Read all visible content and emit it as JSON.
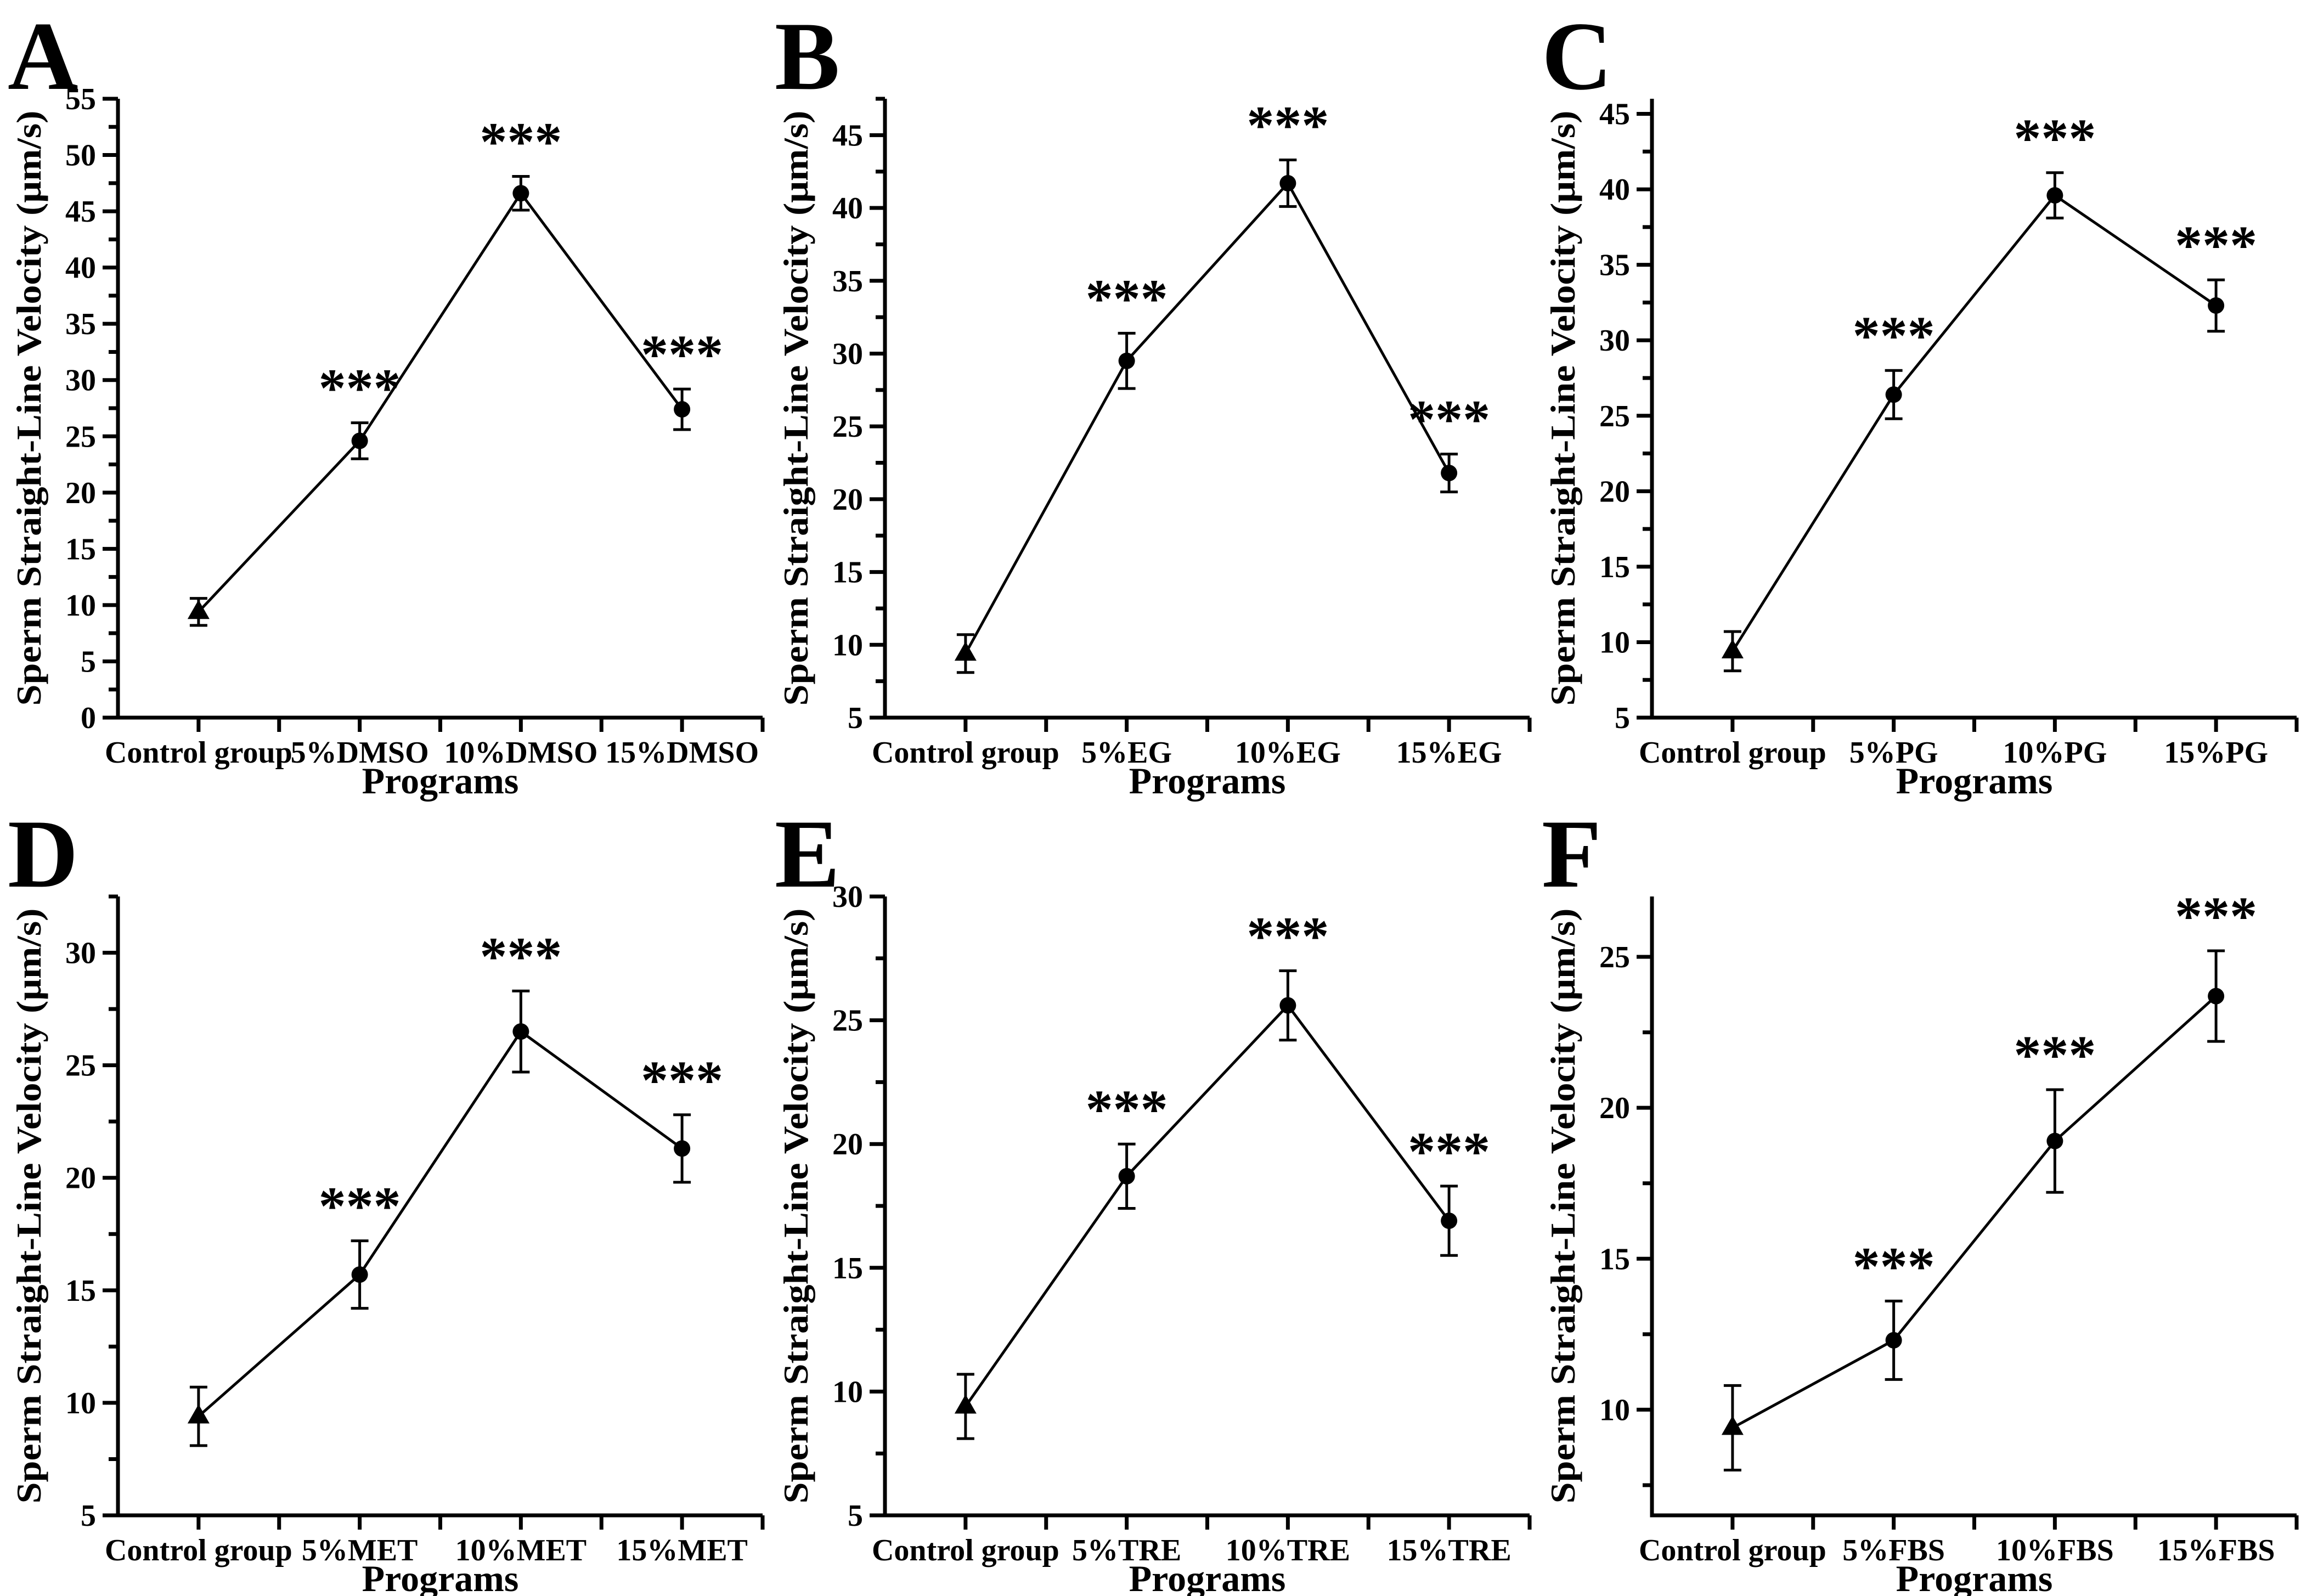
{
  "figure": {
    "background_color": "#ffffff",
    "foreground_color": "#000000",
    "shared_ylabel": "Sperm Straight-Line Velocity (μm/s)",
    "shared_xlabel": "Programs",
    "marker_legend": {
      "control_marker": "triangle-marker",
      "treatment_marker": "circle-marker"
    }
  },
  "chart_data": [
    {
      "panel_label": "A",
      "type": "line",
      "title": "",
      "xlabel": "Programs",
      "ylabel": "Sperm Straight-Line Velocity (μm/s)",
      "categories": [
        "Control group",
        "5%DMSO",
        "10%DMSO",
        "15%DMSO"
      ],
      "values": [
        9.4,
        24.6,
        46.6,
        27.4
      ],
      "errors": [
        1.2,
        1.6,
        1.5,
        1.8
      ],
      "significance": [
        "",
        "***",
        "***",
        "***"
      ],
      "markers": [
        "triangle",
        "circle",
        "circle",
        "circle"
      ],
      "ylim": [
        0,
        55
      ],
      "yticks": [
        0,
        5,
        10,
        15,
        20,
        25,
        30,
        35,
        40,
        45,
        50,
        55
      ],
      "minor_tick_step": 2.5,
      "grid": false,
      "legend": null
    },
    {
      "panel_label": "B",
      "type": "line",
      "title": "",
      "xlabel": "Programs",
      "ylabel": "Sperm Straight-Line Velocity (μm/s)",
      "categories": [
        "Control group",
        "5%EG",
        "10%EG",
        "15%EG"
      ],
      "values": [
        9.4,
        29.5,
        41.7,
        21.8
      ],
      "errors": [
        1.3,
        1.9,
        1.6,
        1.3
      ],
      "significance": [
        "",
        "***",
        "***",
        "***"
      ],
      "markers": [
        "triangle",
        "circle",
        "circle",
        "circle"
      ],
      "ylim": [
        5,
        47.5
      ],
      "yticks": [
        5,
        10,
        15,
        20,
        25,
        30,
        35,
        40,
        45
      ],
      "minor_tick_step": 2.5,
      "grid": false,
      "legend": null
    },
    {
      "panel_label": "C",
      "type": "line",
      "title": "",
      "xlabel": "Programs",
      "ylabel": "Sperm Straight-Line Velocity (μm/s)",
      "categories": [
        "Control group",
        "5%PG",
        "10%PG",
        "15%PG"
      ],
      "values": [
        9.4,
        26.4,
        39.6,
        32.3
      ],
      "errors": [
        1.3,
        1.6,
        1.5,
        1.7
      ],
      "significance": [
        "",
        "***",
        "***",
        "***"
      ],
      "markers": [
        "triangle",
        "circle",
        "circle",
        "circle"
      ],
      "ylim": [
        5,
        46
      ],
      "yticks": [
        5,
        10,
        15,
        20,
        25,
        30,
        35,
        40,
        45
      ],
      "minor_tick_step": 2.5,
      "grid": false,
      "legend": null
    },
    {
      "panel_label": "D",
      "type": "line",
      "title": "",
      "xlabel": "Programs",
      "ylabel": "Sperm Straight-Line Velocity (μm/s)",
      "categories": [
        "Control group",
        "5%MET",
        "10%MET",
        "15%MET"
      ],
      "values": [
        9.4,
        15.7,
        26.5,
        21.3
      ],
      "errors": [
        1.3,
        1.5,
        1.8,
        1.5
      ],
      "significance": [
        "",
        "***",
        "***",
        "***"
      ],
      "markers": [
        "triangle",
        "circle",
        "circle",
        "circle"
      ],
      "ylim": [
        5,
        32.5
      ],
      "yticks": [
        5,
        10,
        15,
        20,
        25,
        30
      ],
      "minor_tick_step": 2.5,
      "grid": false,
      "legend": null
    },
    {
      "panel_label": "E",
      "type": "line",
      "title": "",
      "xlabel": "Programs",
      "ylabel": "Sperm Straight-Line Velocity (μm/s)",
      "categories": [
        "Control group",
        "5%TRE",
        "10%TRE",
        "15%TRE"
      ],
      "values": [
        9.4,
        18.7,
        25.6,
        16.9
      ],
      "errors": [
        1.3,
        1.3,
        1.4,
        1.4
      ],
      "significance": [
        "",
        "***",
        "***",
        "***"
      ],
      "markers": [
        "triangle",
        "circle",
        "circle",
        "circle"
      ],
      "ylim": [
        5,
        30
      ],
      "yticks": [
        5,
        10,
        15,
        20,
        25,
        30
      ],
      "minor_tick_step": 2.5,
      "grid": false,
      "legend": null
    },
    {
      "panel_label": "F",
      "type": "line",
      "title": "",
      "xlabel": "Programs",
      "ylabel": "Sperm Straight-Line Velocity (μm/s)",
      "categories": [
        "Control group",
        "5%FBS",
        "10%FBS",
        "15%FBS"
      ],
      "values": [
        9.4,
        12.3,
        18.9,
        23.7
      ],
      "errors": [
        1.4,
        1.3,
        1.7,
        1.5
      ],
      "significance": [
        "",
        "***",
        "***",
        "***"
      ],
      "markers": [
        "triangle",
        "circle",
        "circle",
        "circle"
      ],
      "ylim": [
        6.5,
        27
      ],
      "yticks": [
        10,
        15,
        20,
        25
      ],
      "minor_tick_step": 2.5,
      "grid": false,
      "legend": null
    }
  ]
}
